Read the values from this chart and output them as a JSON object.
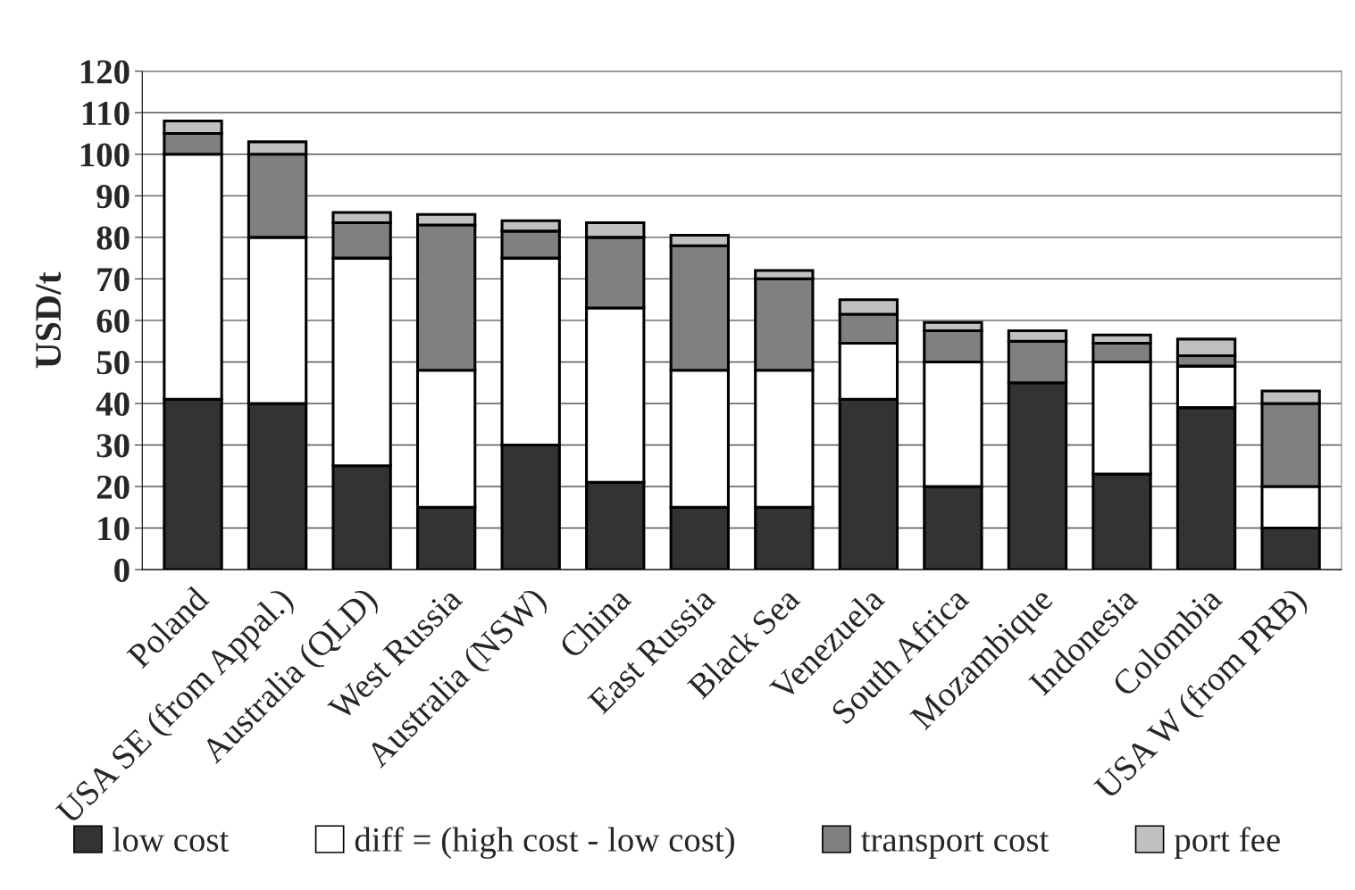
{
  "chart_data": {
    "type": "bar",
    "stacked": true,
    "ylabel": "USD/t",
    "categories": [
      "Poland",
      "USA SE (from Appal.)",
      "Australia (QLD)",
      "West Russia",
      "Australia (NSW)",
      "China",
      "East Russia",
      "Black Sea",
      "Venezuela",
      "South Africa",
      "Mozambique",
      "Indonesia",
      "Colombia",
      "USA W (from PRB)"
    ],
    "series": [
      {
        "name": "low cost",
        "color": "#333333",
        "values": [
          41,
          40,
          25,
          15,
          30,
          21,
          15,
          15,
          41,
          20,
          45,
          23,
          39,
          10
        ]
      },
      {
        "name": "diff = (high cost - low cost)",
        "color": "#ffffff",
        "values": [
          59,
          40,
          50,
          33,
          45,
          42,
          33,
          33,
          13.5,
          30,
          0,
          27,
          10,
          10
        ]
      },
      {
        "name": "transport cost",
        "color": "#808080",
        "values": [
          5,
          20,
          8.5,
          35,
          6.5,
          17,
          30,
          22,
          7,
          7.5,
          10,
          4.5,
          2.5,
          20
        ]
      },
      {
        "name": "port fee",
        "color": "#c0c0c0",
        "values": [
          3,
          3,
          2.5,
          2.5,
          2.5,
          3.5,
          2.5,
          2,
          3.5,
          2,
          2.5,
          2,
          4,
          3
        ]
      }
    ],
    "ylim": [
      0,
      120
    ],
    "yticks": [
      0,
      10,
      20,
      30,
      40,
      50,
      60,
      70,
      80,
      90,
      100,
      110,
      120
    ],
    "grid": "y",
    "legend": "bottom"
  }
}
